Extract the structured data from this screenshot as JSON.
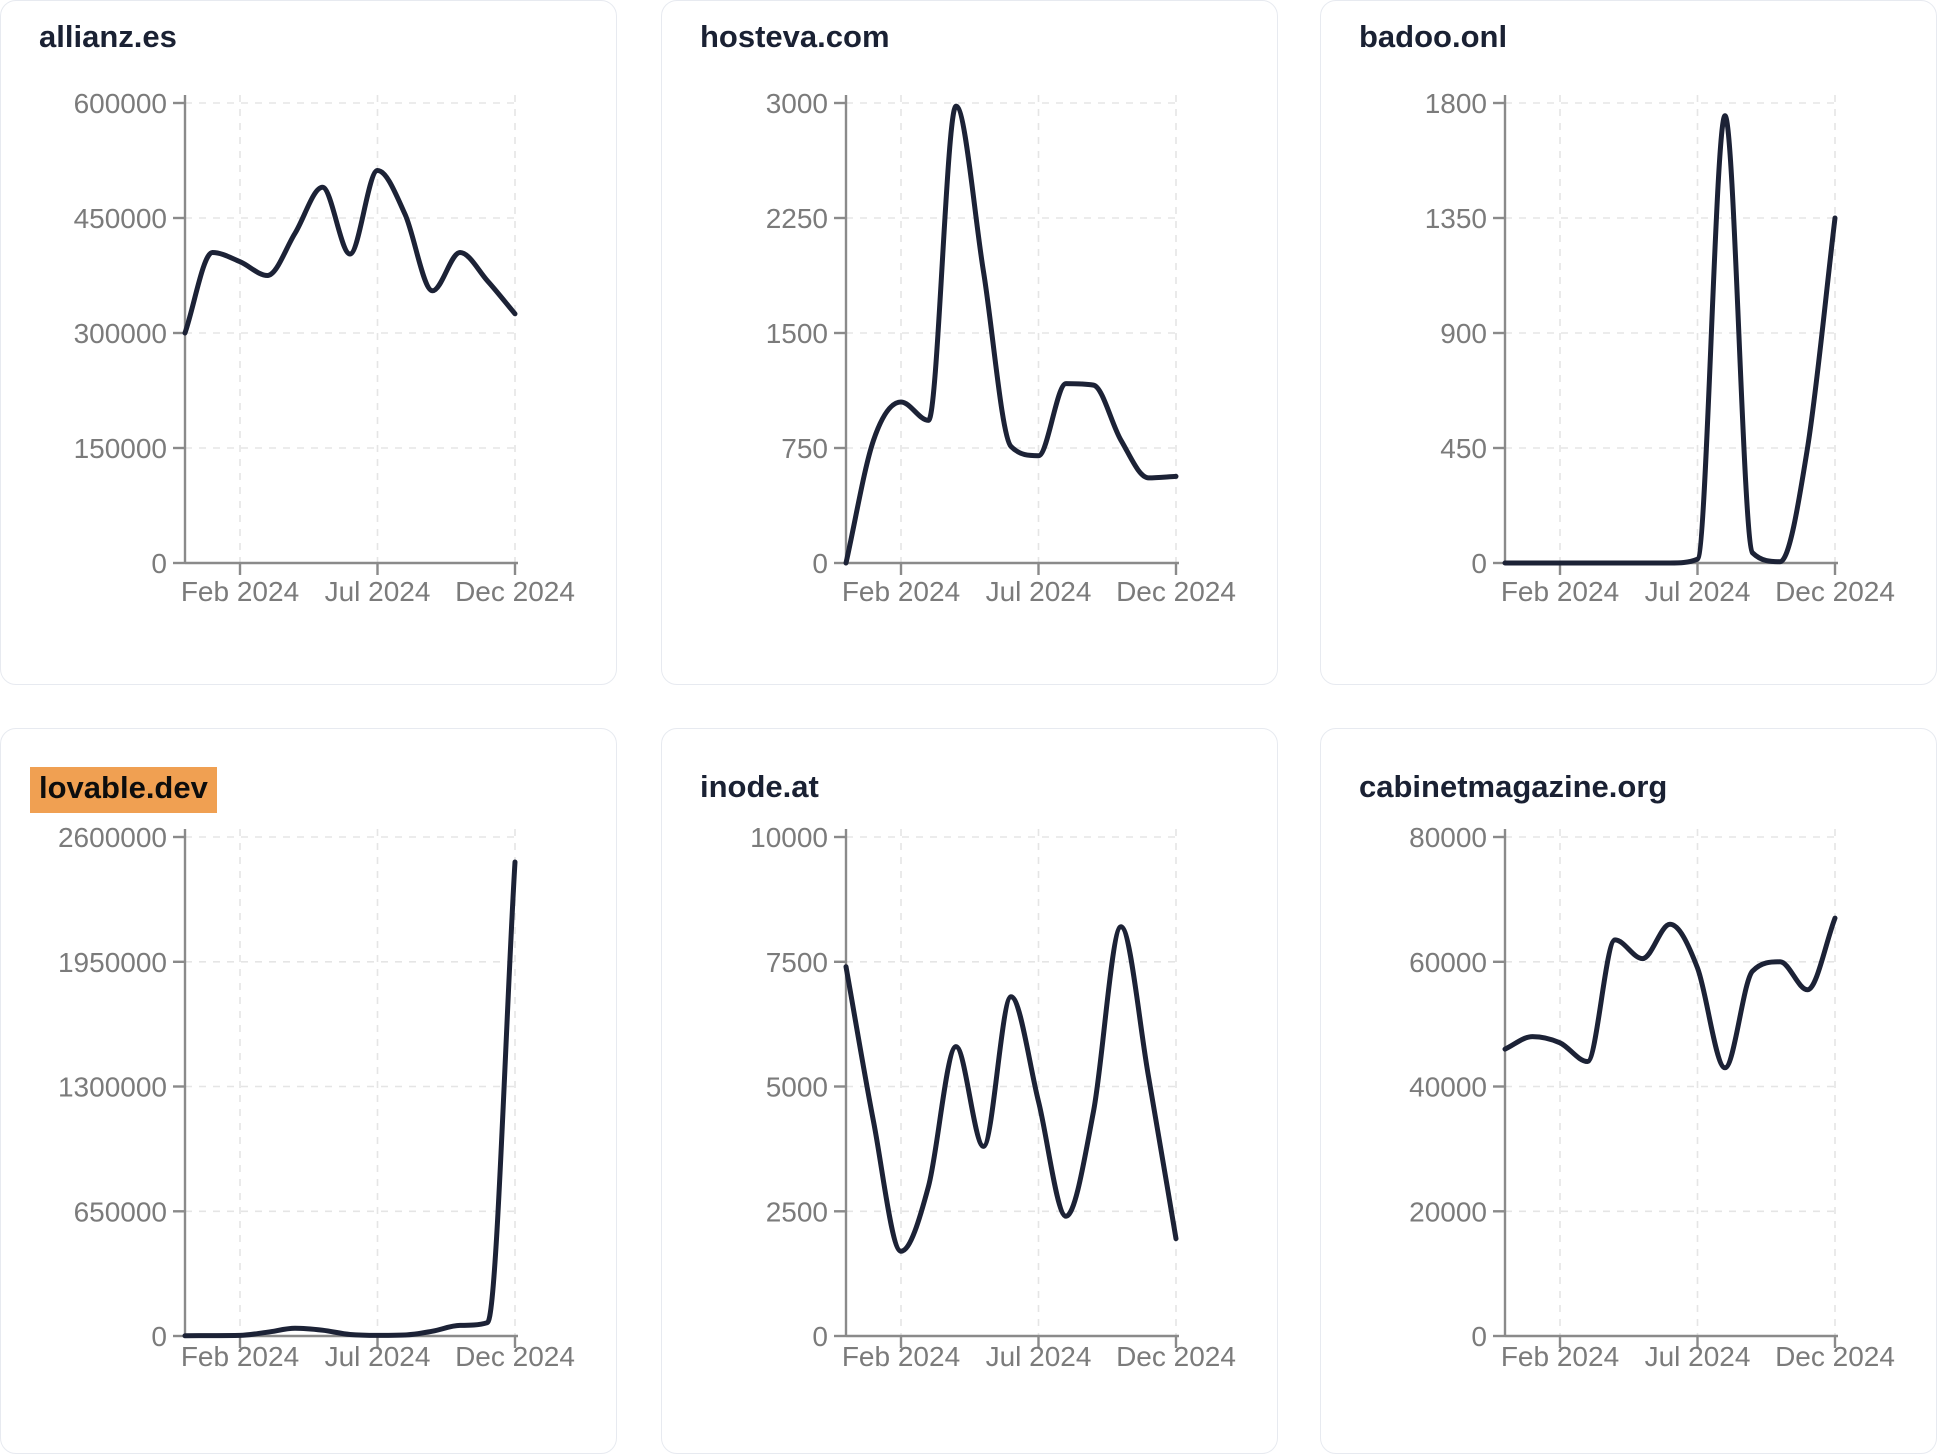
{
  "page": {
    "background": "#ffffff"
  },
  "colors": {
    "series_line": "#1c2236",
    "axis": "#8a8a8a",
    "axis_label": "#7b7b7b",
    "gridline": "#e5e5e5",
    "title_text": "#1a2133",
    "title_highlight_bg": "#f0a052",
    "title_highlight_text": "#0d0d0d",
    "card_border": "#e7eaf0",
    "card_background": "#ffffff"
  },
  "chart_data": [
    {
      "type": "line",
      "title": "allianz.es",
      "title_highlighted": false,
      "x": [
        "Dec 2023",
        "Jan 2024",
        "Feb 2024",
        "Mar 2024",
        "Apr 2024",
        "May 2024",
        "Jun 2024",
        "Jul 2024",
        "Aug 2024",
        "Sep 2024",
        "Oct 2024",
        "Nov 2024",
        "Dec 2024"
      ],
      "values": [
        300000,
        405000,
        393000,
        375000,
        430000,
        490000,
        403000,
        512000,
        455000,
        355000,
        405000,
        368000,
        325000
      ],
      "ylim": [
        0,
        600000
      ],
      "y_ticks": [
        0,
        150000,
        300000,
        450000,
        600000
      ],
      "x_tick_labels": [
        "Feb 2024",
        "Jul 2024",
        "Dec 2024"
      ],
      "x_tick_indices": [
        2,
        7,
        12
      ],
      "grid": "dashed",
      "legend": "none"
    },
    {
      "type": "line",
      "title": "hosteva.com",
      "title_highlighted": false,
      "x": [
        "Dec 2023",
        "Jan 2024",
        "Feb 2024",
        "Mar 2024",
        "Apr 2024",
        "May 2024",
        "Jun 2024",
        "Jul 2024",
        "Aug 2024",
        "Sep 2024",
        "Oct 2024",
        "Nov 2024",
        "Dec 2024"
      ],
      "values": [
        0,
        800,
        1050,
        930,
        2980,
        1900,
        760,
        700,
        1170,
        1160,
        800,
        555,
        565
      ],
      "ylim": [
        0,
        3000
      ],
      "y_ticks": [
        0,
        750,
        1500,
        2250,
        3000
      ],
      "x_tick_labels": [
        "Feb 2024",
        "Jul 2024",
        "Dec 2024"
      ],
      "x_tick_indices": [
        2,
        7,
        12
      ],
      "grid": "dashed",
      "legend": "none"
    },
    {
      "type": "line",
      "title": "badoo.onl",
      "title_highlighted": false,
      "x": [
        "Dec 2023",
        "Jan 2024",
        "Feb 2024",
        "Mar 2024",
        "Apr 2024",
        "May 2024",
        "Jun 2024",
        "Jul 2024",
        "Aug 2024",
        "Sep 2024",
        "Oct 2024",
        "Nov 2024",
        "Dec 2024"
      ],
      "values": [
        0,
        0,
        0,
        0,
        0,
        0,
        0,
        15,
        1750,
        40,
        5,
        450,
        1350
      ],
      "ylim": [
        0,
        1800
      ],
      "y_ticks": [
        0,
        450,
        900,
        1350,
        1800
      ],
      "x_tick_labels": [
        "Feb 2024",
        "Jul 2024",
        "Dec 2024"
      ],
      "x_tick_indices": [
        2,
        7,
        12
      ],
      "grid": "dashed",
      "legend": "none"
    },
    {
      "type": "line",
      "title": "lovable.dev",
      "title_highlighted": true,
      "x": [
        "Dec 2023",
        "Jan 2024",
        "Feb 2024",
        "Mar 2024",
        "Apr 2024",
        "May 2024",
        "Jun 2024",
        "Jul 2024",
        "Aug 2024",
        "Sep 2024",
        "Oct 2024",
        "Nov 2024",
        "Dec 2024"
      ],
      "values": [
        1000,
        2000,
        3000,
        20000,
        40000,
        30000,
        8000,
        3000,
        5000,
        25000,
        55000,
        70000,
        2470000
      ],
      "ylim": [
        0,
        2600000
      ],
      "y_ticks": [
        0,
        650000,
        1300000,
        1950000,
        2600000
      ],
      "x_tick_labels": [
        "Feb 2024",
        "Jul 2024",
        "Dec 2024"
      ],
      "x_tick_indices": [
        2,
        7,
        12
      ],
      "grid": "dashed",
      "legend": "none"
    },
    {
      "type": "line",
      "title": "inode.at",
      "title_highlighted": false,
      "x": [
        "Dec 2023",
        "Jan 2024",
        "Feb 2024",
        "Mar 2024",
        "Apr 2024",
        "May 2024",
        "Jun 2024",
        "Jul 2024",
        "Aug 2024",
        "Sep 2024",
        "Oct 2024",
        "Nov 2024",
        "Dec 2024"
      ],
      "values": [
        7400,
        4300,
        1700,
        3000,
        5800,
        3800,
        6800,
        4700,
        2400,
        4500,
        8200,
        5200,
        1950
      ],
      "ylim": [
        0,
        10000
      ],
      "y_ticks": [
        0,
        2500,
        5000,
        7500,
        10000
      ],
      "x_tick_labels": [
        "Feb 2024",
        "Jul 2024",
        "Dec 2024"
      ],
      "x_tick_indices": [
        2,
        7,
        12
      ],
      "grid": "dashed",
      "legend": "none"
    },
    {
      "type": "line",
      "title": "cabinetmagazine.org",
      "title_highlighted": false,
      "x": [
        "Dec 2023",
        "Jan 2024",
        "Feb 2024",
        "Mar 2024",
        "Apr 2024",
        "May 2024",
        "Jun 2024",
        "Jul 2024",
        "Aug 2024",
        "Sep 2024",
        "Oct 2024",
        "Nov 2024",
        "Dec 2024"
      ],
      "values": [
        46000,
        48000,
        47000,
        44000,
        63500,
        60500,
        66000,
        59000,
        43000,
        58500,
        60000,
        55500,
        67000
      ],
      "ylim": [
        0,
        80000
      ],
      "y_ticks": [
        0,
        20000,
        40000,
        60000,
        80000
      ],
      "x_tick_labels": [
        "Feb 2024",
        "Jul 2024",
        "Dec 2024"
      ],
      "x_tick_indices": [
        2,
        7,
        12
      ],
      "grid": "dashed",
      "legend": "none"
    }
  ]
}
